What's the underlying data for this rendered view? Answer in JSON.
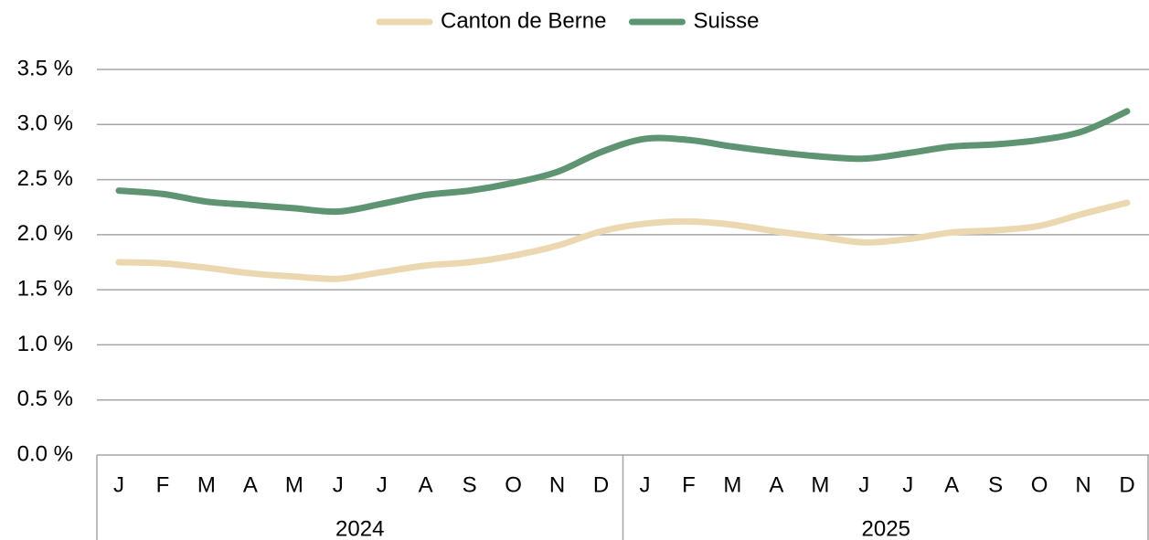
{
  "chart_data": {
    "type": "line",
    "categories": [
      "J",
      "F",
      "M",
      "A",
      "M",
      "J",
      "J",
      "A",
      "S",
      "O",
      "N",
      "D",
      "J",
      "F",
      "M",
      "A",
      "M",
      "J",
      "J",
      "A",
      "S",
      "O",
      "N",
      "D"
    ],
    "category_groups": [
      "2024",
      "2025"
    ],
    "series": [
      {
        "name": "Canton de Berne",
        "color": "#ecd8b0",
        "values": [
          1.75,
          1.74,
          1.7,
          1.65,
          1.62,
          1.6,
          1.66,
          1.72,
          1.75,
          1.81,
          1.9,
          2.03,
          2.1,
          2.12,
          2.09,
          2.03,
          1.98,
          1.93,
          1.96,
          2.02,
          2.04,
          2.08,
          2.19,
          2.29
        ]
      },
      {
        "name": "Suisse",
        "color": "#5e9471",
        "values": [
          2.4,
          2.37,
          2.3,
          2.27,
          2.24,
          2.21,
          2.28,
          2.36,
          2.4,
          2.47,
          2.57,
          2.75,
          2.87,
          2.86,
          2.8,
          2.75,
          2.71,
          2.69,
          2.74,
          2.8,
          2.82,
          2.86,
          2.94,
          3.12
        ]
      }
    ],
    "ylim": [
      0,
      3.5
    ],
    "yticks": [
      {
        "value": 0,
        "label": "0.0 %"
      },
      {
        "value": 0.5,
        "label": "0.5 %"
      },
      {
        "value": 1,
        "label": "1.0 %"
      },
      {
        "value": 1.5,
        "label": "1.5 %"
      },
      {
        "value": 2,
        "label": "2.0 %"
      },
      {
        "value": 2.5,
        "label": "2.5 %"
      },
      {
        "value": 3,
        "label": "3.0 %"
      },
      {
        "value": 3.5,
        "label": "3.5 %"
      }
    ],
    "grid": true,
    "legend": "top"
  }
}
